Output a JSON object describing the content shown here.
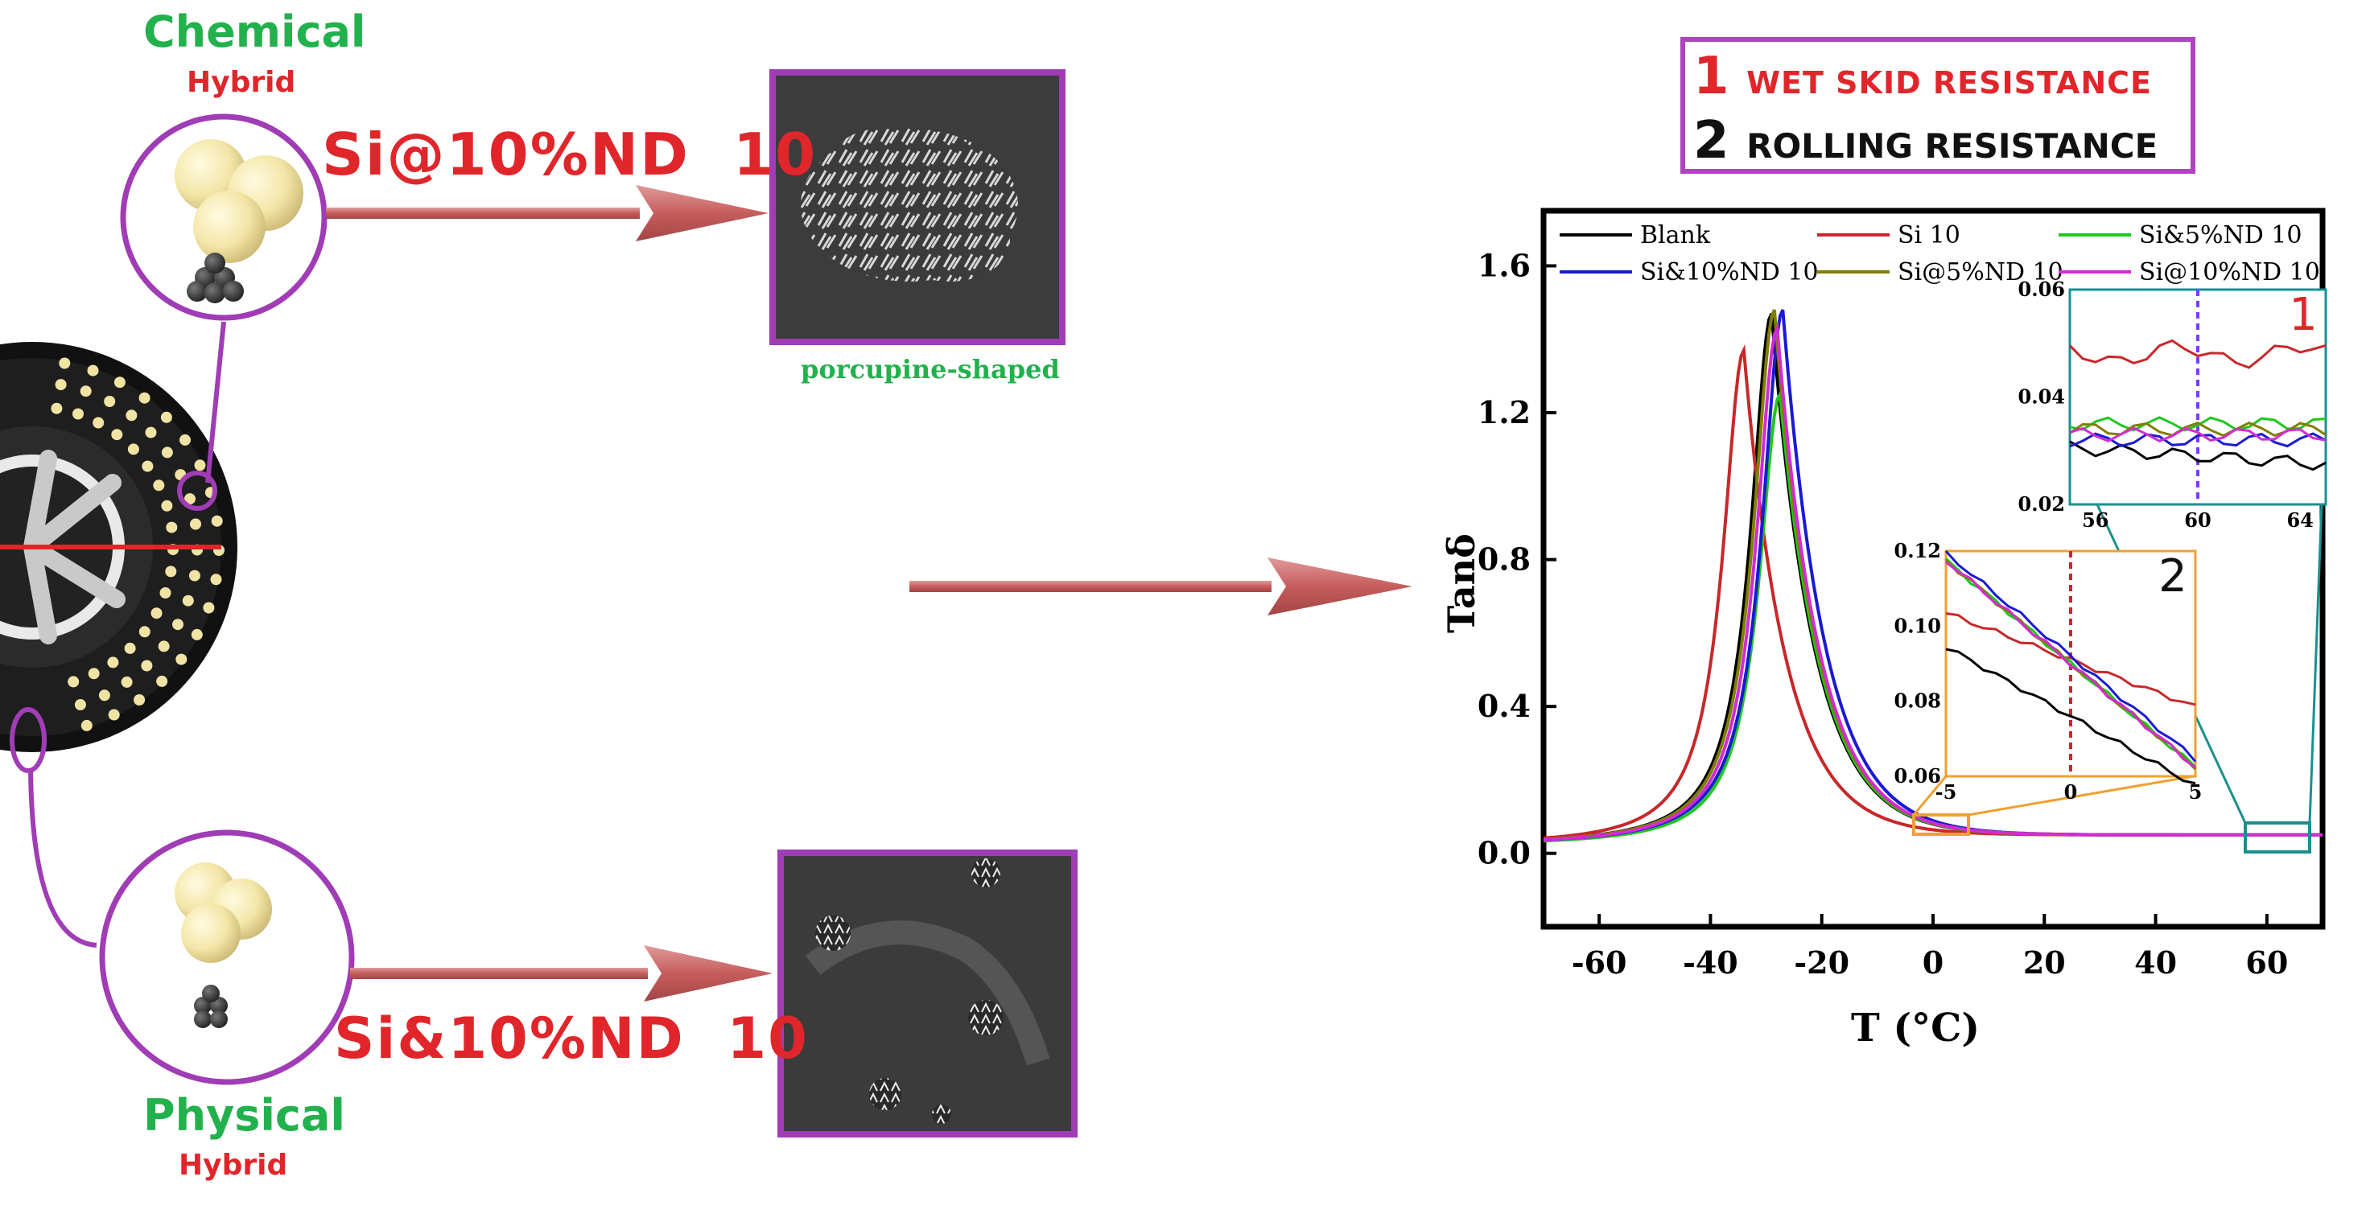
{
  "figure": {
    "chemical": {
      "label": "Chemical",
      "sub": "Hybrid",
      "sample": "Si@10%ND  10",
      "sem_caption": "porcupine-shaped"
    },
    "physical": {
      "label": "Physical",
      "sub": "Hybrid",
      "sample": "Si&10%ND  10"
    },
    "callout": {
      "n1": "1",
      "line1": "WET SKID RESISTANCE",
      "n2": "2",
      "line2": "ROLLING RESISTANCE"
    },
    "colors": {
      "purple": "#a03cb5",
      "arrow": "#cd6b6b",
      "green": "#22b14c",
      "red": "#e0262b"
    }
  },
  "chart_data": {
    "type": "line",
    "xlabel": "T (°C)",
    "ylabel": "Tanδ",
    "xlim": [
      -70,
      70
    ],
    "ylim": [
      -0.2,
      1.75
    ],
    "xticks": [
      "-60",
      "-40",
      "-20",
      "0",
      "20",
      "40",
      "60"
    ],
    "yticks": [
      "0.0",
      "0.4",
      "0.8",
      "1.2",
      "1.6"
    ],
    "legend": "top",
    "series": [
      {
        "name": "Blank",
        "color": "#000000",
        "peak_T": -29,
        "peak": 1.47
      },
      {
        "name": "Si 10",
        "color": "#c8282a",
        "peak_T": -34,
        "peak": 1.37
      },
      {
        "name": "Si&5%ND 10",
        "color": "#1ec81e",
        "peak_T": -27.5,
        "peak": 1.25
      },
      {
        "name": "Si&10%ND 10",
        "color": "#1a1ad2",
        "peak_T": -27,
        "peak": 1.48
      },
      {
        "name": "Si@5%ND 10",
        "color": "#7f7f00",
        "peak_T": -28.5,
        "peak": 1.48
      },
      {
        "name": "Si@10%ND 10",
        "color": "#d22bd2",
        "peak_T": -28,
        "peak": 1.43
      }
    ],
    "inset1": {
      "label": "1",
      "xlim": [
        55,
        65
      ],
      "ylim": [
        0.02,
        0.06
      ],
      "xticks": [
        "56",
        "60",
        "64"
      ],
      "yticks": [
        "0.02",
        "0.04",
        "0.06"
      ],
      "values_at_60": {
        "Blank": 0.029,
        "Si 10": 0.048,
        "Si&5%ND 10": 0.035,
        "Si&10%ND 10": 0.032,
        "Si@5%ND 10": 0.034,
        "Si@10%ND 10": 0.033
      }
    },
    "inset2": {
      "label": "2",
      "xlim": [
        -5,
        5
      ],
      "ylim": [
        0.06,
        0.12
      ],
      "xticks": [
        "-5",
        "0",
        "5"
      ],
      "yticks": [
        "0.06",
        "0.08",
        "0.10",
        "0.12"
      ],
      "values_at_0": {
        "Blank": 0.076,
        "Si 10": 0.091,
        "Si&5%ND 10": 0.09,
        "Si&10%ND 10": 0.092,
        "Si@5%ND 10": 0.09,
        "Si@10%ND 10": 0.09
      }
    }
  }
}
